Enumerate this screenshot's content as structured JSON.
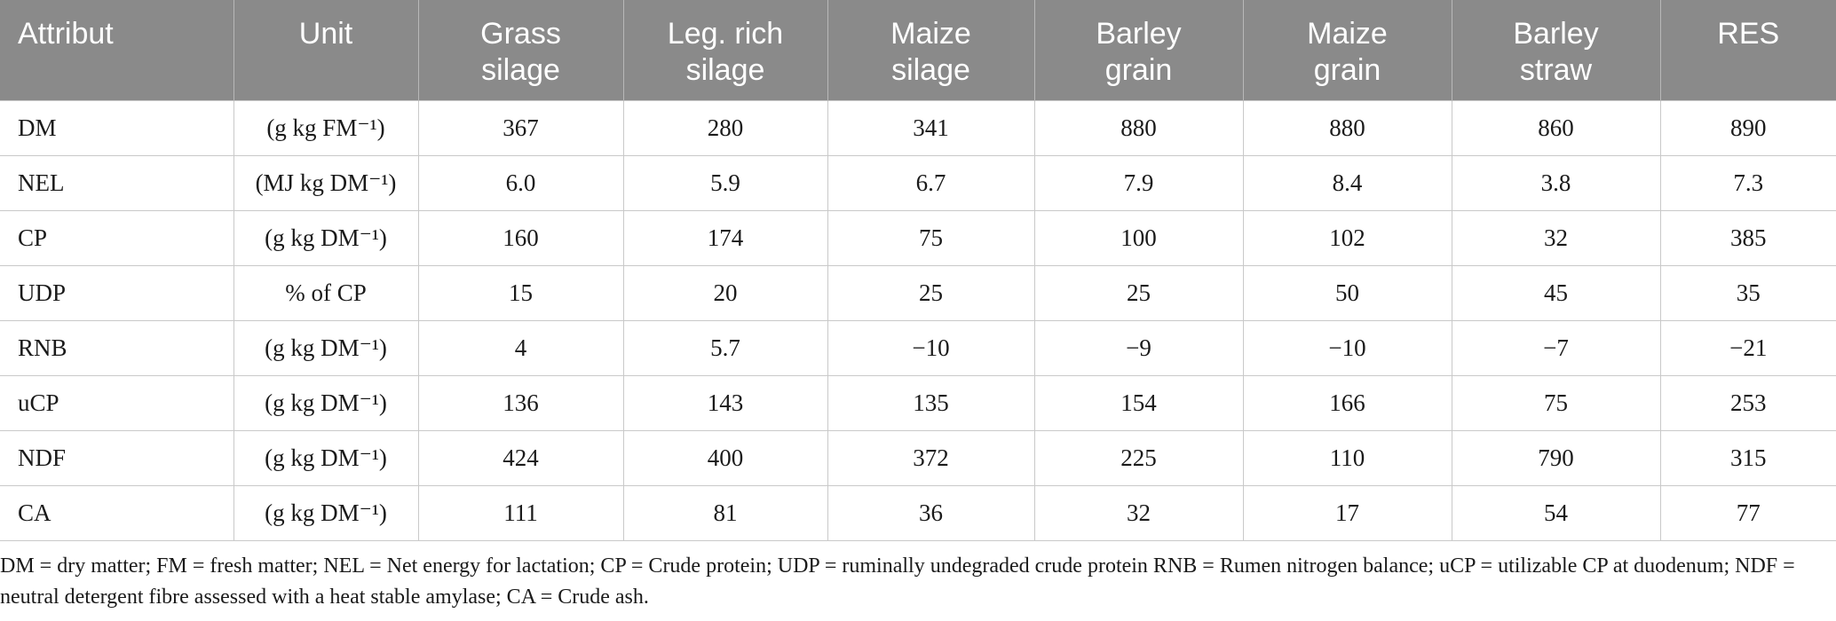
{
  "table": {
    "headers": [
      {
        "line1": "Attribut",
        "line2": ""
      },
      {
        "line1": "Unit",
        "line2": ""
      },
      {
        "line1": "Grass",
        "line2": "silage"
      },
      {
        "line1": "Leg. rich",
        "line2": "silage"
      },
      {
        "line1": "Maize",
        "line2": "silage"
      },
      {
        "line1": "Barley",
        "line2": "grain"
      },
      {
        "line1": "Maize",
        "line2": "grain"
      },
      {
        "line1": "Barley",
        "line2": "straw"
      },
      {
        "line1": "RES",
        "line2": ""
      }
    ],
    "rows": [
      [
        "DM",
        "(g kg FM⁻¹)",
        "367",
        "280",
        "341",
        "880",
        "880",
        "860",
        "890"
      ],
      [
        "NEL",
        "(MJ kg DM⁻¹)",
        "6.0",
        "5.9",
        "6.7",
        "7.9",
        "8.4",
        "3.8",
        "7.3"
      ],
      [
        "CP",
        "(g kg DM⁻¹)",
        "160",
        "174",
        "75",
        "100",
        "102",
        "32",
        "385"
      ],
      [
        "UDP",
        "% of CP",
        "15",
        "20",
        "25",
        "25",
        "50",
        "45",
        "35"
      ],
      [
        "RNB",
        "(g kg DM⁻¹)",
        "4",
        "5.7",
        "−10",
        "−9",
        "−10",
        "−7",
        "−21"
      ],
      [
        "uCP",
        "(g kg DM⁻¹)",
        "136",
        "143",
        "135",
        "154",
        "166",
        "75",
        "253"
      ],
      [
        "NDF",
        "(g kg DM⁻¹)",
        "424",
        "400",
        "372",
        "225",
        "110",
        "790",
        "315"
      ],
      [
        "CA",
        "(g kg DM⁻¹)",
        "111",
        "81",
        "36",
        "32",
        "17",
        "54",
        "77"
      ]
    ]
  },
  "footnote": "DM = dry matter; FM = fresh matter; NEL = Net energy for lactation; CP = Crude protein; UDP = ruminally undegraded crude protein RNB = Rumen nitrogen balance; uCP = utilizable CP at duodenum; NDF = neutral detergent fibre assessed with a heat stable amylase; CA = Crude ash.",
  "colors": {
    "header_bg": "#8a8a8a",
    "header_text": "#ffffff",
    "grid_line": "#c9c9c9"
  }
}
